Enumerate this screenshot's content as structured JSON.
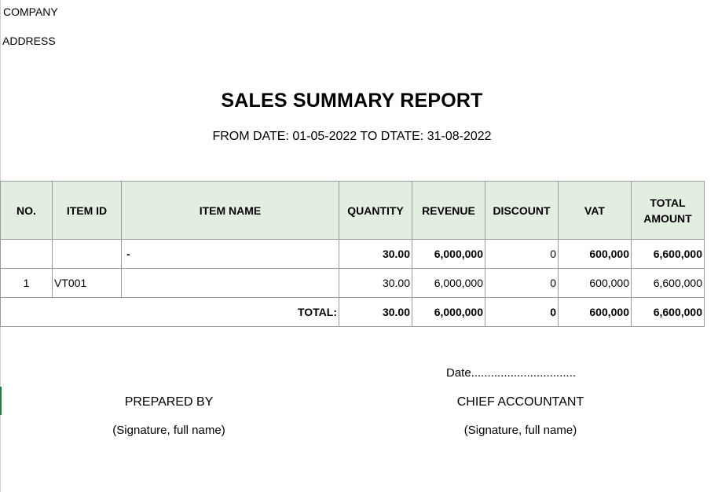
{
  "header": {
    "company": "COMPANY",
    "address": "ADDRESS",
    "title": "SALES SUMMARY REPORT",
    "date_range": "FROM DATE: 01-05-2022 TO DTATE: 31-08-2022"
  },
  "table": {
    "columns": [
      "NO.",
      "ITEM ID",
      "ITEM NAME",
      "QUANTITY",
      "REVENUE",
      "DISCOUNT",
      "VAT",
      "TOTAL AMOUNT"
    ],
    "group_row": {
      "no": "",
      "item_id": "",
      "item_name": "-",
      "quantity": "30.00",
      "revenue": "6,000,000",
      "discount": "0",
      "vat": "600,000",
      "total_amount": "6,600,000"
    },
    "rows": [
      {
        "no": "1",
        "item_id": "VT001",
        "item_name": "",
        "quantity": "30.00",
        "revenue": "6,000,000",
        "discount": "0",
        "vat": "600,000",
        "total_amount": "6,600,000"
      }
    ],
    "total": {
      "label": "TOTAL:",
      "quantity": "30.00",
      "revenue": "6,000,000",
      "discount": "0",
      "vat": "600,000",
      "total_amount": "6,600,000"
    }
  },
  "footer": {
    "date_line": "Date................................",
    "prepared_by": "PREPARED BY",
    "prepared_signature": "(Signature, full name)",
    "chief_accountant": "CHIEF ACCOUNTANT",
    "chief_signature": "(Signature, full name)"
  },
  "colors": {
    "header_fill": "#e2efe0",
    "grid_border": "#9a9a9a",
    "sheet_marker": "#1e7b45"
  }
}
